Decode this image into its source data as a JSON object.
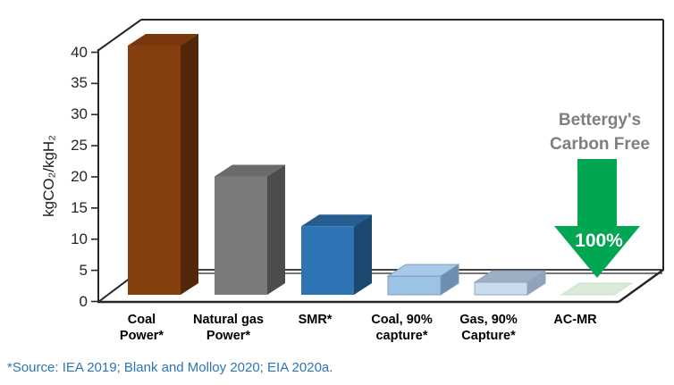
{
  "footnote": {
    "text": "*Source: IEA 2019; Blank and Molloy 2020; EIA 2020a.",
    "color": "#2E75B6"
  },
  "chart_data": {
    "type": "bar",
    "style": "3d",
    "title": "",
    "xlabel": "",
    "ylabel": "kgCO₂/kgH₂",
    "ylim": [
      0,
      40
    ],
    "yticks": [
      0,
      5,
      10,
      15,
      20,
      25,
      30,
      35,
      40
    ],
    "grid": false,
    "legend": "none",
    "categories": [
      "Coal Power*",
      "Natural gas Power*",
      "SMR*",
      "Coal, 90% capture*",
      "Gas, 90% Capture*",
      "AC-MR"
    ],
    "category_lines": [
      [
        "Coal",
        "Power*"
      ],
      [
        "Natural gas",
        "Power*"
      ],
      [
        "SMR*"
      ],
      [
        "Coal, 90%",
        "capture*"
      ],
      [
        "Gas, 90%",
        "Capture*"
      ],
      [
        "AC-MR"
      ]
    ],
    "values": [
      40,
      19,
      11,
      3,
      2,
      0
    ],
    "bar_colors": [
      {
        "front": "#853E0D",
        "top": "#78370C",
        "side": "#52270A"
      },
      {
        "front": "#7B7B7B",
        "top": "#6A6A6A",
        "side": "#4C4C4C"
      },
      {
        "front": "#2E74B5",
        "top": "#255D91",
        "side": "#1C4970"
      },
      {
        "front": "#9CC2E5",
        "top": "#A9C9EB",
        "side": "#6D8EB0",
        "stroke": "#7F9CBA"
      },
      {
        "front": "#C9DCEE",
        "top": "#9DAFC4",
        "side": "#90A3B8",
        "stroke": "#90A3B8"
      },
      {
        "front": "#DAEADA",
        "top": "#DAEADA",
        "side": "#C9DEC9",
        "stroke": "#C9DEC9"
      }
    ],
    "annotation": {
      "line1": "Bettergy's",
      "line2": "Carbon Free",
      "arrow_label": "100%",
      "arrow_color": "#00A651",
      "text_color": "#7F7F7F",
      "target_category": "AC-MR"
    }
  }
}
